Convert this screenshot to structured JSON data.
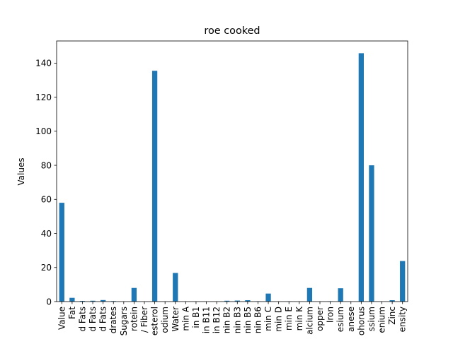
{
  "chart_data": {
    "type": "bar",
    "title": "roe cooked",
    "xlabel": "",
    "ylabel": "Values",
    "ylim": [
      0,
      153
    ],
    "yticks": [
      0,
      20,
      40,
      60,
      80,
      100,
      120,
      140
    ],
    "grid": false,
    "legend": false,
    "bar_color": "#1f77b4",
    "categories": [
      "Value",
      "Fat",
      "d Fats",
      "d Fats",
      "d Fats",
      "drates",
      "Sugars",
      "rotein",
      "/ Fiber",
      "esterol",
      "odium",
      "Water",
      "min A",
      "in B1",
      "in B11",
      "in B12",
      "nin B2",
      "nin B3",
      "nin B5",
      "nin B6",
      "min C",
      "min D",
      "min E",
      "min K",
      "alcium",
      "opper",
      "Iron",
      "esium",
      "anese",
      "ohorus",
      "ssium",
      "enium",
      "Zinc",
      "ensity"
    ],
    "values": [
      58.0,
      2.2,
      0.4,
      0.5,
      0.9,
      0.3,
      0.0,
      8.0,
      0.0,
      135.5,
      0.0,
      16.8,
      0.0,
      0.0,
      0.0,
      0.0,
      0.5,
      0.6,
      0.8,
      0.2,
      4.7,
      0.0,
      0.1,
      0.0,
      8.0,
      0.0,
      0.2,
      7.8,
      0.0,
      145.8,
      80.0,
      0.0,
      0.8,
      23.8
    ]
  }
}
